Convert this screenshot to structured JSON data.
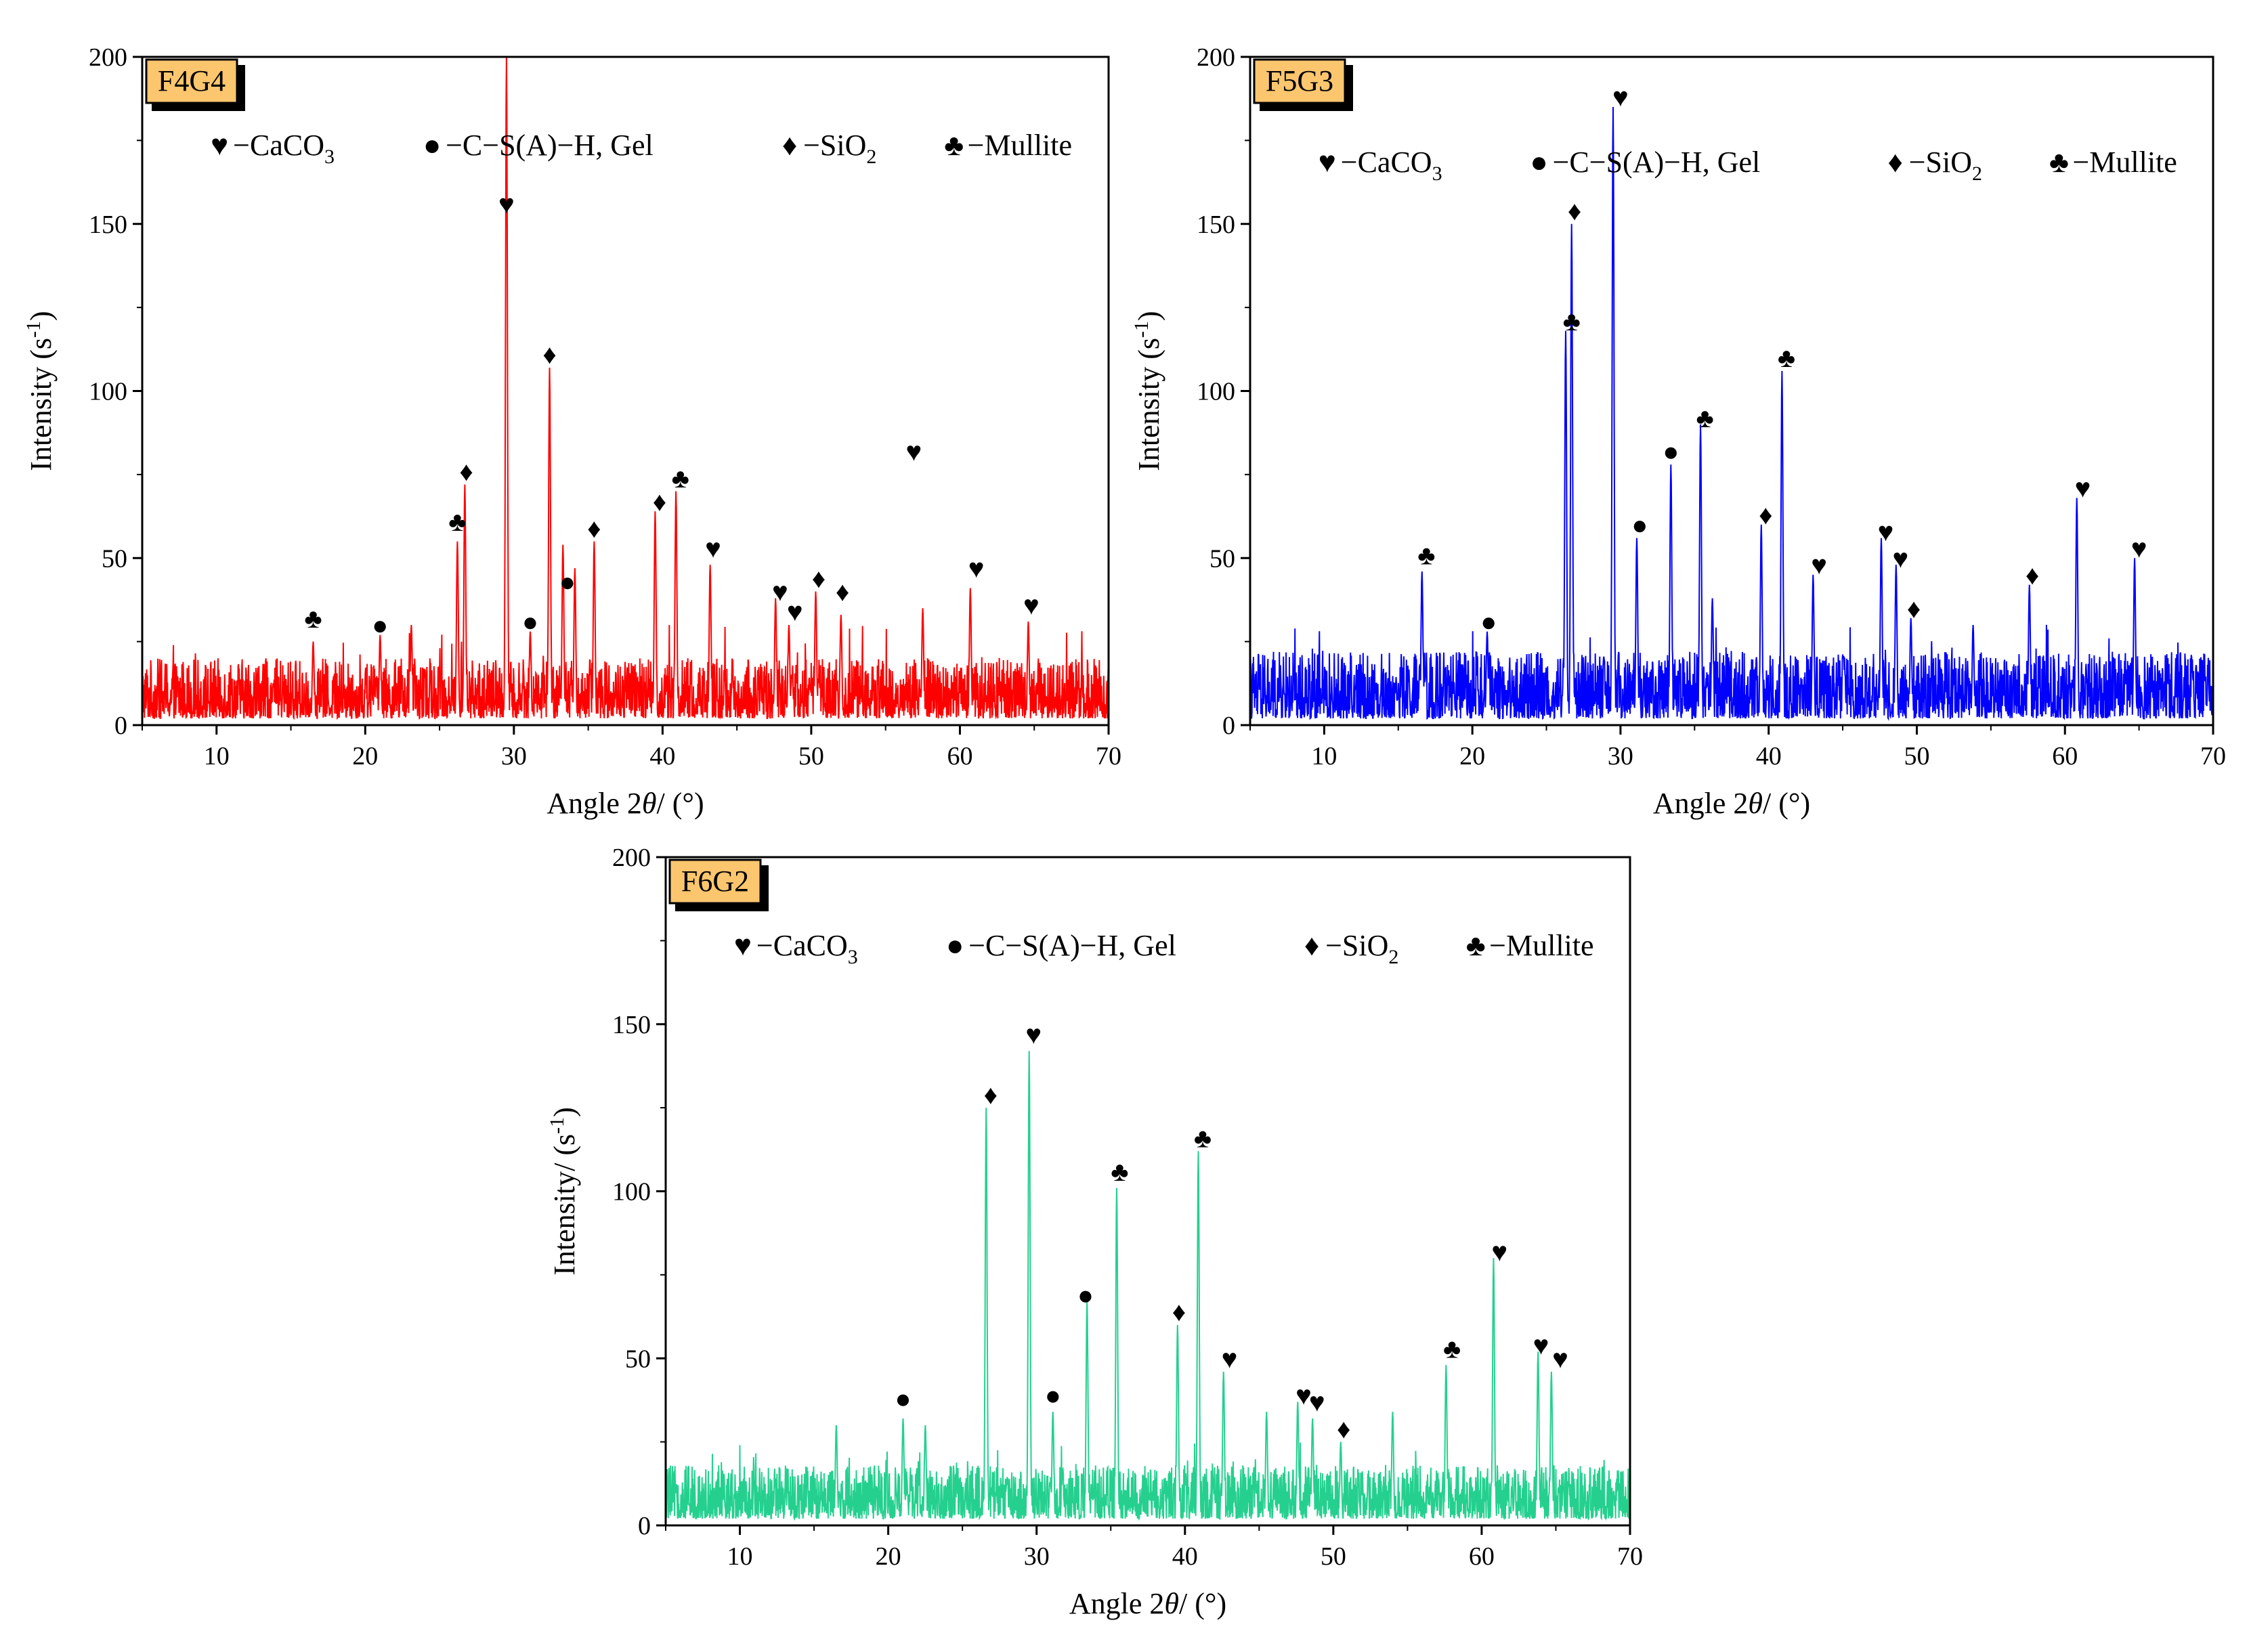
{
  "chart_data": [
    {
      "type": "line",
      "panel_label": "F4G4",
      "series_color": "#ff0000",
      "xlabel_prefix": "Angle 2",
      "xlabel_theta": "θ",
      "xlabel_suffix": "/ (°)",
      "ylabel_main": "Intensity (s",
      "ylabel_sup": "-1",
      "ylabel_close": ")",
      "xlim": [
        5,
        70
      ],
      "ylim": [
        0,
        200
      ],
      "xticks": [
        10,
        20,
        30,
        40,
        50,
        60,
        70
      ],
      "yticks": [
        0,
        50,
        100,
        150,
        200
      ],
      "legend": [
        {
          "symbol": "♥",
          "text": "−CaCO",
          "sub": "3"
        },
        {
          "symbol": "●",
          "text": "−C−S(A)−H, Gel",
          "sub": ""
        },
        {
          "symbol": "♦",
          "text": "−SiO",
          "sub": "2"
        },
        {
          "symbol": "♣",
          "text": "−Mullite",
          "sub": ""
        }
      ],
      "noise_level": 18,
      "peaks": [
        {
          "x": 16.5,
          "y": 25
        },
        {
          "x": 21.0,
          "y": 27
        },
        {
          "x": 23.1,
          "y": 30
        },
        {
          "x": 26.2,
          "y": 55
        },
        {
          "x": 26.7,
          "y": 72
        },
        {
          "x": 29.5,
          "y": 200
        },
        {
          "x": 31.1,
          "y": 28
        },
        {
          "x": 32.4,
          "y": 107
        },
        {
          "x": 33.3,
          "y": 54
        },
        {
          "x": 34.1,
          "y": 47
        },
        {
          "x": 35.4,
          "y": 55
        },
        {
          "x": 39.5,
          "y": 64
        },
        {
          "x": 40.9,
          "y": 70
        },
        {
          "x": 43.2,
          "y": 48
        },
        {
          "x": 47.6,
          "y": 38
        },
        {
          "x": 48.5,
          "y": 30
        },
        {
          "x": 50.3,
          "y": 40
        },
        {
          "x": 52.0,
          "y": 33
        },
        {
          "x": 57.5,
          "y": 35
        },
        {
          "x": 60.7,
          "y": 41
        },
        {
          "x": 64.6,
          "y": 31
        }
      ],
      "markers": [
        {
          "x": 16.5,
          "y": 32,
          "symbol": "♣"
        },
        {
          "x": 21.0,
          "y": 30,
          "symbol": "●"
        },
        {
          "x": 26.2,
          "y": 61,
          "symbol": "♣"
        },
        {
          "x": 26.8,
          "y": 76,
          "symbol": "♦"
        },
        {
          "x": 29.5,
          "y": 156,
          "symbol": "♥"
        },
        {
          "x": 31.1,
          "y": 31,
          "symbol": "●"
        },
        {
          "x": 32.4,
          "y": 111,
          "symbol": "♦"
        },
        {
          "x": 33.6,
          "y": 43,
          "symbol": "●"
        },
        {
          "x": 35.4,
          "y": 59,
          "symbol": "♦"
        },
        {
          "x": 39.8,
          "y": 67,
          "symbol": "♦"
        },
        {
          "x": 41.2,
          "y": 74,
          "symbol": "♣"
        },
        {
          "x": 43.4,
          "y": 53,
          "symbol": "♥"
        },
        {
          "x": 47.9,
          "y": 40,
          "symbol": "♥"
        },
        {
          "x": 48.9,
          "y": 34,
          "symbol": "♥"
        },
        {
          "x": 50.5,
          "y": 44,
          "symbol": "♦"
        },
        {
          "x": 52.1,
          "y": 40,
          "symbol": "♦"
        },
        {
          "x": 56.9,
          "y": 82,
          "symbol": "♥"
        },
        {
          "x": 61.1,
          "y": 47,
          "symbol": "♥"
        },
        {
          "x": 64.8,
          "y": 36,
          "symbol": "♥"
        }
      ]
    },
    {
      "type": "line",
      "panel_label": "F5G3",
      "series_color": "#0000ff",
      "xlabel_prefix": "Angle 2",
      "xlabel_theta": "θ",
      "xlabel_suffix": "/ (°)",
      "ylabel_main": "Intensity (s",
      "ylabel_sup": "-1",
      "ylabel_close": ")",
      "xlim": [
        5,
        70
      ],
      "ylim": [
        0,
        200
      ],
      "xticks": [
        10,
        20,
        30,
        40,
        50,
        60,
        70
      ],
      "yticks": [
        0,
        50,
        100,
        150,
        200
      ],
      "legend": [
        {
          "symbol": "♥",
          "text": "−CaCO",
          "sub": "3"
        },
        {
          "symbol": "●",
          "text": "−C−S(A)−H, Gel",
          "sub": ""
        },
        {
          "symbol": "♦",
          "text": "−SiO",
          "sub": "2"
        },
        {
          "symbol": "♣",
          "text": "−Mullite",
          "sub": ""
        }
      ],
      "noise_level": 20,
      "peaks": [
        {
          "x": 16.6,
          "y": 46
        },
        {
          "x": 21.0,
          "y": 28
        },
        {
          "x": 26.3,
          "y": 118
        },
        {
          "x": 26.7,
          "y": 150
        },
        {
          "x": 29.5,
          "y": 185
        },
        {
          "x": 31.1,
          "y": 56
        },
        {
          "x": 33.4,
          "y": 78
        },
        {
          "x": 35.4,
          "y": 90
        },
        {
          "x": 36.2,
          "y": 38
        },
        {
          "x": 39.5,
          "y": 60
        },
        {
          "x": 40.9,
          "y": 106
        },
        {
          "x": 43.0,
          "y": 45
        },
        {
          "x": 47.6,
          "y": 56
        },
        {
          "x": 48.6,
          "y": 48
        },
        {
          "x": 49.6,
          "y": 32
        },
        {
          "x": 53.8,
          "y": 30
        },
        {
          "x": 57.6,
          "y": 42
        },
        {
          "x": 60.8,
          "y": 68
        },
        {
          "x": 64.7,
          "y": 50
        }
      ],
      "markers": [
        {
          "x": 16.9,
          "y": 51,
          "symbol": "♣"
        },
        {
          "x": 21.1,
          "y": 31,
          "symbol": "●"
        },
        {
          "x": 26.7,
          "y": 121,
          "symbol": "♣"
        },
        {
          "x": 26.9,
          "y": 154,
          "symbol": "♦"
        },
        {
          "x": 30.0,
          "y": 188,
          "symbol": "♥"
        },
        {
          "x": 31.3,
          "y": 60,
          "symbol": "●"
        },
        {
          "x": 33.4,
          "y": 82,
          "symbol": "●"
        },
        {
          "x": 35.7,
          "y": 92,
          "symbol": "♣"
        },
        {
          "x": 39.8,
          "y": 63,
          "symbol": "♦"
        },
        {
          "x": 41.2,
          "y": 110,
          "symbol": "♣"
        },
        {
          "x": 43.4,
          "y": 48,
          "symbol": "♥"
        },
        {
          "x": 47.9,
          "y": 58,
          "symbol": "♥"
        },
        {
          "x": 48.9,
          "y": 50,
          "symbol": "♥"
        },
        {
          "x": 49.8,
          "y": 35,
          "symbol": "♦"
        },
        {
          "x": 57.8,
          "y": 45,
          "symbol": "♦"
        },
        {
          "x": 61.2,
          "y": 71,
          "symbol": "♥"
        },
        {
          "x": 65.0,
          "y": 53,
          "symbol": "♥"
        }
      ]
    },
    {
      "type": "line",
      "panel_label": "F6G2",
      "series_color": "#25d08f",
      "xlabel_prefix": "Angle 2",
      "xlabel_theta": "θ",
      "xlabel_suffix": "/ (°)",
      "ylabel_main": "Intensity/ (s",
      "ylabel_sup": "-1",
      "ylabel_close": ")",
      "xlim": [
        5,
        70
      ],
      "ylim": [
        0,
        200
      ],
      "xticks": [
        10,
        20,
        30,
        40,
        50,
        60,
        70
      ],
      "yticks": [
        0,
        50,
        100,
        150,
        200
      ],
      "legend": [
        {
          "symbol": "♥",
          "text": "−CaCO",
          "sub": "3"
        },
        {
          "symbol": "●",
          "text": "−C−S(A)−H, Gel",
          "sub": ""
        },
        {
          "symbol": "♦",
          "text": "−SiO",
          "sub": "2"
        },
        {
          "symbol": "♣",
          "text": "−Mullite",
          "sub": ""
        }
      ],
      "noise_level": 16,
      "peaks": [
        {
          "x": 16.5,
          "y": 30
        },
        {
          "x": 21.0,
          "y": 32
        },
        {
          "x": 22.5,
          "y": 30
        },
        {
          "x": 26.6,
          "y": 125
        },
        {
          "x": 29.5,
          "y": 142
        },
        {
          "x": 31.1,
          "y": 34
        },
        {
          "x": 33.4,
          "y": 67
        },
        {
          "x": 35.4,
          "y": 101
        },
        {
          "x": 39.5,
          "y": 60
        },
        {
          "x": 40.9,
          "y": 112
        },
        {
          "x": 42.6,
          "y": 46
        },
        {
          "x": 45.5,
          "y": 34
        },
        {
          "x": 47.6,
          "y": 37
        },
        {
          "x": 48.6,
          "y": 32
        },
        {
          "x": 50.5,
          "y": 25
        },
        {
          "x": 54.0,
          "y": 34
        },
        {
          "x": 57.6,
          "y": 48
        },
        {
          "x": 60.8,
          "y": 80
        },
        {
          "x": 63.8,
          "y": 52
        },
        {
          "x": 64.7,
          "y": 46
        }
      ],
      "markers": [
        {
          "x": 21.0,
          "y": 38,
          "symbol": "●"
        },
        {
          "x": 26.9,
          "y": 129,
          "symbol": "♦"
        },
        {
          "x": 29.8,
          "y": 147,
          "symbol": "♥"
        },
        {
          "x": 31.1,
          "y": 39,
          "symbol": "●"
        },
        {
          "x": 33.3,
          "y": 69,
          "symbol": "●"
        },
        {
          "x": 35.6,
          "y": 106,
          "symbol": "♣"
        },
        {
          "x": 39.6,
          "y": 64,
          "symbol": "♦"
        },
        {
          "x": 41.2,
          "y": 116,
          "symbol": "♣"
        },
        {
          "x": 43.0,
          "y": 50,
          "symbol": "♥"
        },
        {
          "x": 48.0,
          "y": 39,
          "symbol": "♥"
        },
        {
          "x": 48.9,
          "y": 37,
          "symbol": "♥"
        },
        {
          "x": 50.7,
          "y": 29,
          "symbol": "♦"
        },
        {
          "x": 58.0,
          "y": 53,
          "symbol": "♣"
        },
        {
          "x": 61.2,
          "y": 82,
          "symbol": "♥"
        },
        {
          "x": 64.0,
          "y": 54,
          "symbol": "♥"
        },
        {
          "x": 65.3,
          "y": 50,
          "symbol": "♥"
        }
      ]
    }
  ]
}
